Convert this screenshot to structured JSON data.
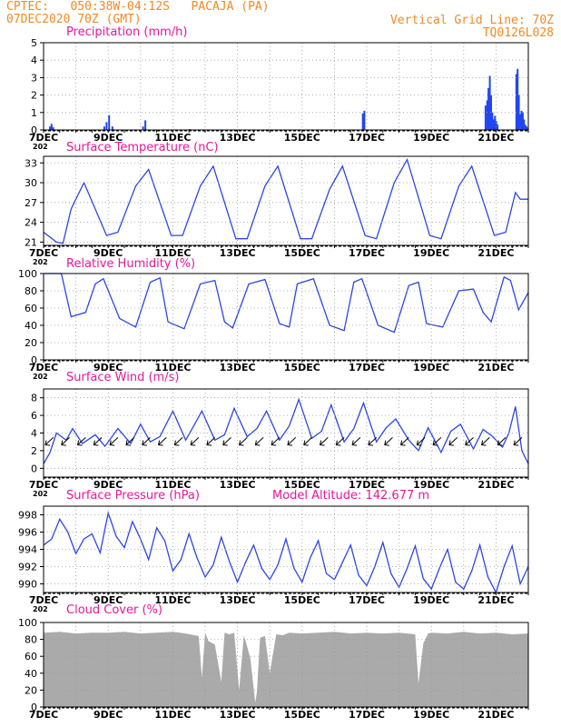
{
  "header": {
    "line1": "CPTEC:   050:38W-04:12S   PACAJA (PA)",
    "line2": "07DEC2020 70Z (GMT)",
    "right1": "Vertical Grid Line: 70Z",
    "right2": "TQ0126L028"
  },
  "colors": {
    "header": "#f08a24",
    "title": "#e8179a",
    "line": "#2b46e6",
    "bar": "#2146f0",
    "cloud": "#aaaaaa",
    "grid": "#9a9a9a",
    "arrow": "#000000"
  },
  "x_tick_labels": [
    "7DEC",
    "9DEC",
    "11DEC",
    "13DEC",
    "15DEC",
    "17DEC",
    "19DEC",
    "21DEC"
  ],
  "x_tick_days": [
    0,
    2,
    4,
    6,
    8,
    10,
    12,
    14
  ],
  "x_day_range": [
    0,
    15
  ],
  "axis_stub": "202",
  "chart_data": [
    {
      "type": "bar",
      "title": "Precipitation (mm/h)",
      "ylim": [
        0,
        5
      ],
      "yticks": [
        0,
        1,
        2,
        3,
        4,
        5
      ],
      "x": [
        0.17,
        0.22,
        0.27,
        1.85,
        1.92,
        2.0,
        2.1,
        3.05,
        3.12,
        4.5,
        6.9,
        9.85,
        9.9,
        13.65,
        13.7,
        13.74,
        13.78,
        13.82,
        13.86,
        13.9,
        13.94,
        13.98,
        14.02,
        14.6,
        14.64,
        14.68,
        14.72,
        14.76,
        14.8,
        14.84,
        14.88,
        14.92,
        14.96
      ],
      "values": [
        0.2,
        0.35,
        0.15,
        0.2,
        0.45,
        0.85,
        0.2,
        0.2,
        0.55,
        0.05,
        0.03,
        0.95,
        1.1,
        1.4,
        1.7,
        2.4,
        3.1,
        2.0,
        1.0,
        0.6,
        0.8,
        0.5,
        0.3,
        3.2,
        3.5,
        2.0,
        0.9,
        1.1,
        1.0,
        0.6,
        0.3,
        0.2,
        0.1
      ]
    },
    {
      "type": "line",
      "title": "Surface Temperature (nC)",
      "ylim": [
        20.5,
        34
      ],
      "yticks": [
        21,
        24,
        27,
        30,
        33
      ],
      "x": [
        0,
        0.4,
        0.6,
        0.85,
        1.25,
        1.95,
        2.3,
        2.85,
        3.25,
        3.95,
        4.3,
        4.85,
        5.25,
        5.95,
        6.3,
        6.85,
        7.25,
        7.95,
        8.3,
        8.85,
        9.25,
        9.95,
        10.3,
        10.85,
        11.25,
        11.95,
        12.3,
        12.85,
        13.25,
        13.95,
        14.3,
        14.6,
        14.75,
        15
      ],
      "values": [
        22.5,
        21,
        20.8,
        26,
        30,
        22,
        22.5,
        29.5,
        32,
        22,
        22,
        29.5,
        32.5,
        21.5,
        21.5,
        29.5,
        32.5,
        21.5,
        21.5,
        29,
        32.5,
        22,
        21.5,
        30,
        33.5,
        22,
        21.5,
        29.5,
        32.5,
        22,
        22.5,
        28.5,
        27.5,
        27.5
      ]
    },
    {
      "type": "line",
      "title": "Relative Humidity (%)",
      "ylim": [
        0,
        100
      ],
      "yticks": [
        0,
        20,
        40,
        60,
        80,
        100
      ],
      "x": [
        0,
        0.55,
        0.85,
        1.3,
        1.6,
        1.85,
        2.35,
        2.85,
        3.3,
        3.6,
        3.85,
        4.35,
        4.85,
        5.3,
        5.6,
        5.85,
        6.35,
        6.85,
        7.3,
        7.6,
        7.85,
        8.35,
        8.85,
        9.3,
        9.6,
        9.85,
        10.35,
        10.85,
        11.3,
        11.6,
        11.85,
        12.35,
        12.85,
        13.3,
        13.6,
        13.85,
        14.25,
        14.45,
        14.7,
        15
      ],
      "values": [
        100,
        100,
        50,
        55,
        88,
        94,
        48,
        38,
        90,
        95,
        44,
        36,
        88,
        92,
        44,
        37,
        88,
        93,
        42,
        38,
        88,
        94,
        40,
        34,
        90,
        94,
        40,
        32,
        86,
        90,
        42,
        38,
        80,
        82,
        55,
        44,
        96,
        92,
        58,
        78
      ]
    },
    {
      "type": "line",
      "title": "Surface Wind (m/s)",
      "ylim": [
        -1,
        9
      ],
      "yticks": [
        0,
        2,
        4,
        6,
        8
      ],
      "x": [
        0,
        0.2,
        0.4,
        0.7,
        0.9,
        1.2,
        1.6,
        1.9,
        2.3,
        2.7,
        3.0,
        3.3,
        3.6,
        4.0,
        4.4,
        4.6,
        4.9,
        5.3,
        5.6,
        5.9,
        6.3,
        6.6,
        6.9,
        7.3,
        7.6,
        7.9,
        8.3,
        8.6,
        8.9,
        9.3,
        9.6,
        9.9,
        10.3,
        10.6,
        10.9,
        11.3,
        11.6,
        11.9,
        12.3,
        12.6,
        12.9,
        13.3,
        13.6,
        13.9,
        14.2,
        14.4,
        14.6,
        14.8,
        15
      ],
      "values": [
        0.5,
        1.8,
        4.0,
        3.2,
        4.5,
        2.8,
        3.8,
        2.5,
        4.5,
        2.8,
        5.0,
        3.0,
        3.6,
        6.5,
        3.2,
        4.5,
        6.5,
        3.2,
        3.8,
        6.8,
        3.6,
        4.5,
        6.5,
        3.2,
        4.8,
        7.8,
        3.4,
        4.2,
        7.2,
        3.0,
        4.5,
        7.4,
        3.0,
        4.6,
        5.6,
        3.2,
        2.0,
        4.6,
        1.8,
        4.2,
        5.0,
        2.2,
        4.4,
        3.6,
        2.4,
        4.0,
        7.0,
        2.0,
        0.5
      ]
    },
    {
      "type": "line",
      "title": "Surface Pressure (hPa)",
      "subtitle": "Model Altitude: 142.677 m",
      "ylim": [
        989,
        999
      ],
      "yticks": [
        990,
        992,
        994,
        996,
        998
      ],
      "x": [
        0,
        0.25,
        0.5,
        0.75,
        1.0,
        1.25,
        1.5,
        1.75,
        2.0,
        2.25,
        2.5,
        2.75,
        3.0,
        3.25,
        3.5,
        3.75,
        4.0,
        4.25,
        4.5,
        4.75,
        5.0,
        5.25,
        5.5,
        5.75,
        6.0,
        6.25,
        6.5,
        6.75,
        7.0,
        7.25,
        7.5,
        7.75,
        8.0,
        8.25,
        8.5,
        8.75,
        9.0,
        9.25,
        9.5,
        9.75,
        10.0,
        10.25,
        10.5,
        10.75,
        11.0,
        11.25,
        11.5,
        11.75,
        12.0,
        12.25,
        12.5,
        12.75,
        13.0,
        13.25,
        13.5,
        13.75,
        14.0,
        14.25,
        14.5,
        14.75,
        15
      ],
      "values": [
        994.5,
        995.2,
        997.5,
        996.0,
        993.5,
        995.2,
        995.8,
        993.6,
        998.2,
        995.5,
        994.2,
        997.2,
        995.2,
        992.8,
        996.5,
        995.0,
        991.5,
        992.8,
        995.8,
        993.0,
        990.8,
        992.2,
        995.4,
        992.6,
        990.2,
        992.5,
        994.5,
        991.8,
        990.5,
        992.2,
        995.2,
        991.8,
        990.2,
        993.0,
        995.0,
        991.2,
        990.5,
        992.5,
        994.5,
        991.0,
        989.8,
        992.0,
        994.8,
        991.2,
        989.6,
        991.8,
        994.4,
        990.6,
        989.4,
        991.8,
        994.0,
        990.2,
        989.4,
        991.5,
        994.5,
        990.8,
        989.0,
        992.0,
        994.4,
        990.0,
        992.0
      ]
    },
    {
      "type": "area",
      "title": "Cloud Cover (%)",
      "ylim": [
        0,
        100
      ],
      "yticks": [
        0,
        20,
        40,
        60,
        80,
        100
      ],
      "x": [
        0,
        0.5,
        1.0,
        1.5,
        2.0,
        2.5,
        3.0,
        3.5,
        4.0,
        4.4,
        4.8,
        4.9,
        5.0,
        5.1,
        5.3,
        5.5,
        5.6,
        5.75,
        5.9,
        6.05,
        6.2,
        6.4,
        6.55,
        6.6,
        6.7,
        6.85,
        7.0,
        7.2,
        7.4,
        7.6,
        8.0,
        8.5,
        9.0,
        9.5,
        10.0,
        10.5,
        11.0,
        11.5,
        11.6,
        11.75,
        11.9,
        12.0,
        12.5,
        13.0,
        13.5,
        14.0,
        14.5,
        15
      ],
      "values": [
        88,
        89,
        87,
        88,
        88,
        89,
        87,
        88,
        89,
        87,
        84,
        35,
        88,
        78,
        74,
        30,
        88,
        86,
        88,
        20,
        85,
        58,
        5,
        18,
        82,
        84,
        40,
        86,
        85,
        88,
        87,
        88,
        89,
        87,
        88,
        87,
        88,
        86,
        28,
        75,
        87,
        88,
        87,
        89,
        87,
        88,
        86,
        87
      ]
    }
  ]
}
